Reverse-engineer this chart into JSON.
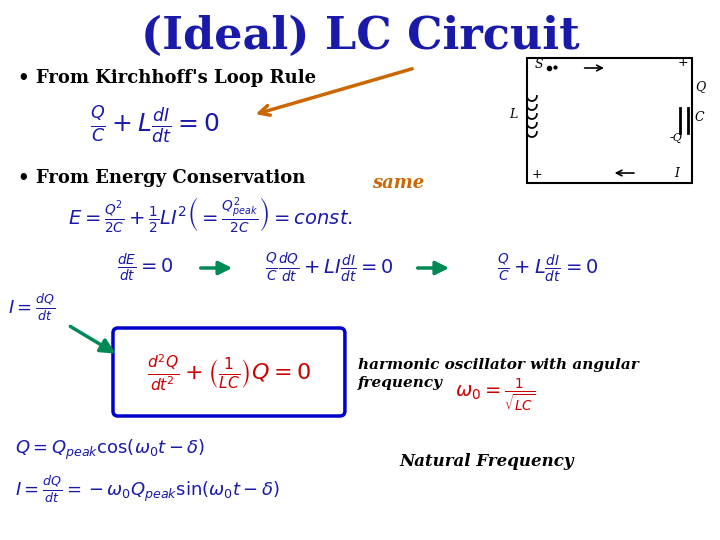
{
  "title": "(Ideal) LC Circuit",
  "title_color": "#1a1aaa",
  "title_fontsize": 32,
  "bg_color": "#ffffff",
  "bullet1": "• From Kirchhoff's Loop Rule",
  "bullet2": "• From Energy Conservation",
  "bullet_color": "#000000",
  "bullet_fontsize": 13,
  "eq_color": "#1a1aaa",
  "red_color": "#cc0000",
  "green_color": "#008855",
  "orange_color": "#cc6600",
  "box_color": "#0000cc",
  "same_text": "same",
  "same_color": "#cc6600",
  "harmonic_line1": "harmonic oscillator with angular",
  "harmonic_line2": "frequency",
  "natural_text": "Natural Frequency"
}
